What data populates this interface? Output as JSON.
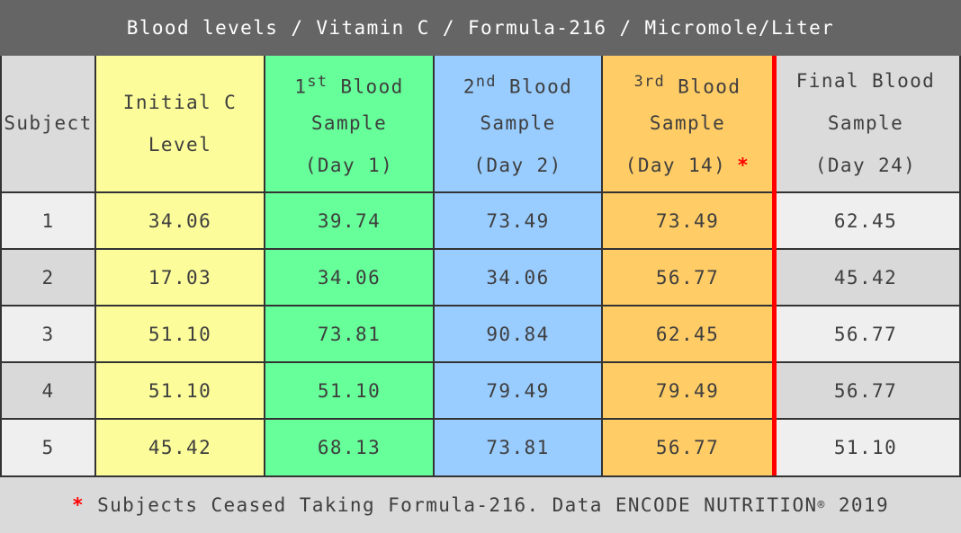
{
  "title": "Blood levels / Vitamin C / Formula-216 / Micromole/Liter",
  "colors": {
    "title_bar": "#656565",
    "initial_column": "#FCFC9B",
    "sample1_column": "#66FF99",
    "sample2_column": "#99CCFF",
    "sample3_column": "#FFCC66",
    "divider_line": "#FF0000",
    "asterisk": "#FF0000",
    "row_light": "#EFEFEF",
    "row_dark": "#D9D9D9",
    "border": "#333333"
  },
  "header": {
    "subject": "Subject",
    "columns": [
      {
        "line1_base": "Initial C",
        "line1_sup": "",
        "line1_rest": "",
        "line2": "Level",
        "line3": "",
        "line3_mark": ""
      },
      {
        "line1_base": "1",
        "line1_sup": "st",
        "line1_rest": " Blood",
        "line2": "Sample",
        "line3": "(Day 1)",
        "line3_mark": ""
      },
      {
        "line1_base": "2",
        "line1_sup": "nd",
        "line1_rest": " Blood",
        "line2": "Sample",
        "line3": "(Day 2)",
        "line3_mark": ""
      },
      {
        "line1_base": "",
        "line1_sup": "3rd",
        "line1_rest": " Blood",
        "line2": "Sample",
        "line3": "(Day 14)",
        "line3_mark": "*"
      },
      {
        "line1_base": "Final Blood",
        "line1_sup": "",
        "line1_rest": "",
        "line2": "Sample",
        "line3": "(Day 24)",
        "line3_mark": ""
      }
    ]
  },
  "table": {
    "rows": [
      {
        "subject": "1",
        "cells": [
          "34.06",
          "39.74",
          "73.49",
          "73.49",
          "62.45"
        ]
      },
      {
        "subject": "2",
        "cells": [
          "17.03",
          "34.06",
          "34.06",
          "56.77",
          "45.42"
        ]
      },
      {
        "subject": "3",
        "cells": [
          "51.10",
          "73.81",
          "90.84",
          "62.45",
          "56.77"
        ]
      },
      {
        "subject": "4",
        "cells": [
          "51.10",
          "51.10",
          "79.49",
          "79.49",
          "56.77"
        ]
      },
      {
        "subject": "5",
        "cells": [
          "45.42",
          "68.13",
          "73.81",
          "56.77",
          "51.10"
        ]
      }
    ]
  },
  "footer": {
    "asterisk": "*",
    "text": " Subjects Ceased Taking Formula-216. Data ENCODE NUTRITION",
    "reg": "®",
    "year": " 2019"
  },
  "chart_data": {
    "type": "table",
    "title": "Blood levels / Vitamin C / Formula-216 / Micromole/Liter",
    "units": "Micromole/Liter",
    "columns": [
      "Subject",
      "Initial C Level",
      "1st Blood Sample (Day 1)",
      "2nd Blood Sample (Day 2)",
      "3rd Blood Sample (Day 14) *",
      "Final Blood Sample (Day 24)"
    ],
    "rows": [
      [
        1,
        34.06,
        39.74,
        73.49,
        73.49,
        62.45
      ],
      [
        2,
        17.03,
        34.06,
        34.06,
        56.77,
        45.42
      ],
      [
        3,
        51.1,
        73.81,
        90.84,
        62.45,
        56.77
      ],
      [
        4,
        51.1,
        51.1,
        79.49,
        79.49,
        56.77
      ],
      [
        5,
        45.42,
        68.13,
        73.81,
        56.77,
        51.1
      ]
    ],
    "footnote": "* Subjects Ceased Taking Formula-216. Data ENCODE NUTRITION® 2019"
  }
}
